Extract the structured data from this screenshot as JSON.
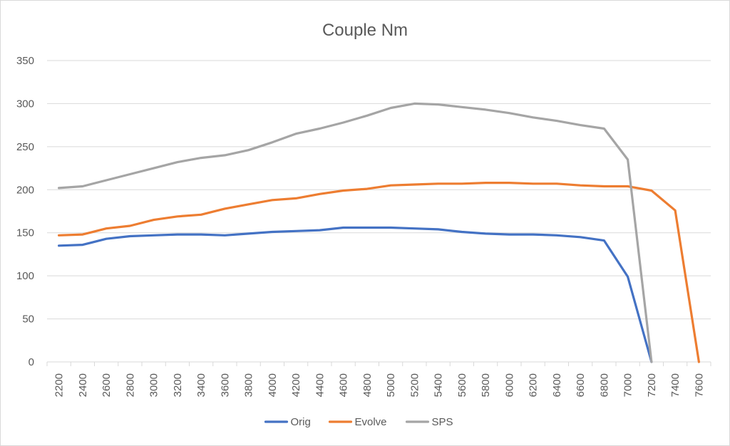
{
  "chart_data": {
    "type": "line",
    "title": "Couple Nm",
    "categories": [
      "2200",
      "2400",
      "2600",
      "2800",
      "3000",
      "3200",
      "3400",
      "3600",
      "3800",
      "4000",
      "4200",
      "4400",
      "4600",
      "4800",
      "5000",
      "5200",
      "5400",
      "5600",
      "5800",
      "6000",
      "6200",
      "6400",
      "6600",
      "6800",
      "7000",
      "7200",
      "7400",
      "7600"
    ],
    "ylim": [
      0,
      350
    ],
    "yticks": [
      0,
      50,
      100,
      150,
      200,
      250,
      300,
      350
    ],
    "grid": true,
    "legend_position": "bottom",
    "series": [
      {
        "name": "Orig",
        "color": "#4472C4",
        "values": [
          135,
          136,
          143,
          146,
          147,
          148,
          148,
          147,
          149,
          151,
          152,
          153,
          156,
          156,
          156,
          155,
          154,
          151,
          149,
          148,
          148,
          147,
          145,
          141,
          99,
          0,
          null,
          null
        ]
      },
      {
        "name": "Evolve",
        "color": "#ED7D31",
        "values": [
          147,
          148,
          155,
          158,
          165,
          169,
          171,
          178,
          183,
          188,
          190,
          195,
          199,
          201,
          205,
          206,
          207,
          207,
          208,
          208,
          207,
          207,
          205,
          204,
          204,
          199,
          176,
          0
        ]
      },
      {
        "name": "SPS",
        "color": "#A5A5A5",
        "values": [
          202,
          204,
          211,
          218,
          225,
          232,
          237,
          240,
          246,
          255,
          265,
          271,
          278,
          286,
          295,
          300,
          299,
          296,
          293,
          289,
          284,
          280,
          275,
          271,
          235,
          0,
          null,
          null
        ]
      }
    ]
  }
}
